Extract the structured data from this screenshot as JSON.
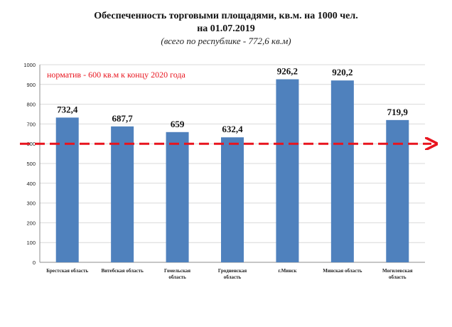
{
  "chart_data": {
    "type": "bar",
    "title_line1": "Обеспеченность торговыми площадями, кв.м. на 1000 чел.",
    "title_line2": "на 01.07.2019",
    "subtitle": "(всего по республике - 772,6 кв.м)",
    "categories": [
      [
        "Брестская область"
      ],
      [
        "Витебская область"
      ],
      [
        "Гомельская",
        "область"
      ],
      [
        "Гродненская",
        "область"
      ],
      [
        "г.Минск"
      ],
      [
        "Минская область"
      ],
      [
        "Могилевская",
        "область"
      ]
    ],
    "values": [
      732.4,
      687.7,
      659,
      632.4,
      926.2,
      920.2,
      719.9
    ],
    "value_labels": [
      "732,4",
      "687,7",
      "659",
      "632,4",
      "926,2",
      "920,2",
      "719,9"
    ],
    "ylim": [
      0,
      1000
    ],
    "yticks": [
      0,
      100,
      200,
      300,
      400,
      500,
      600,
      700,
      800,
      900,
      1000
    ],
    "grid": true,
    "bar_color": "#4f81bd",
    "norm": {
      "value": 600,
      "label": "норматив - 600 кв.м к концу 2020 года",
      "color": "#e8141e"
    }
  }
}
